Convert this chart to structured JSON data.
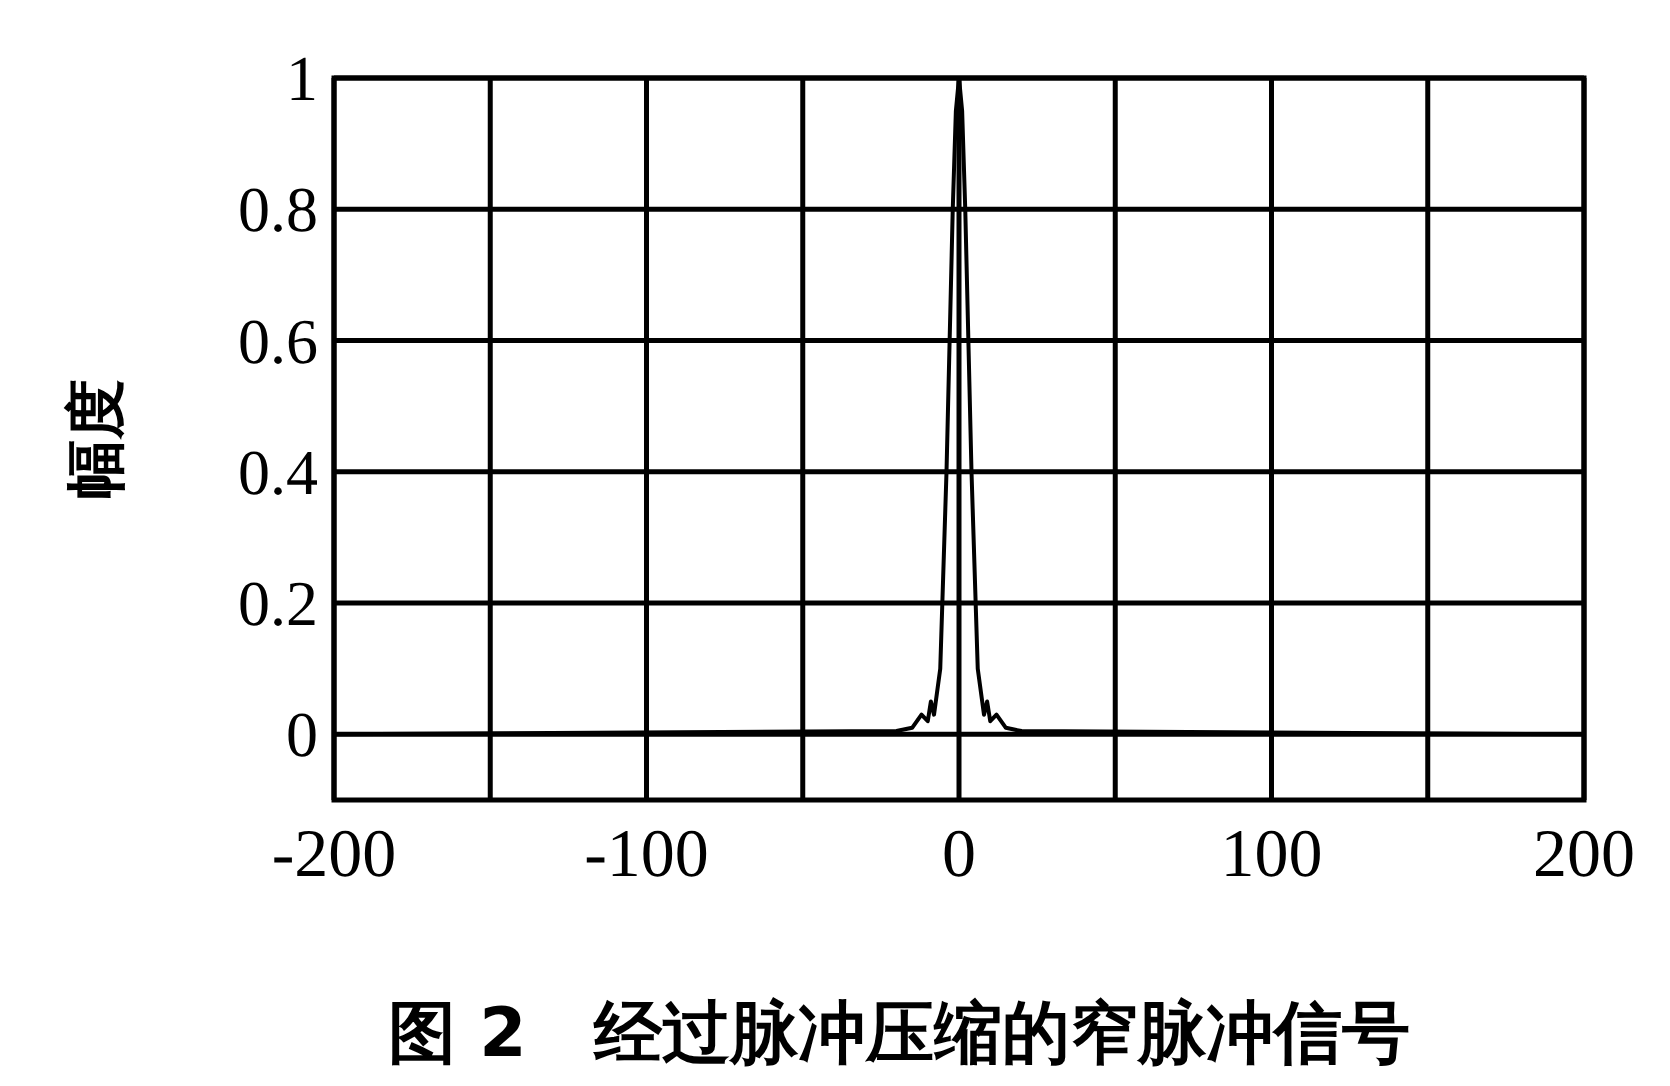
{
  "chart_data": {
    "type": "line",
    "title": "图 2　经过脉冲压缩的窄脉冲信号",
    "ylabel": "幅度",
    "x": [
      -200,
      -20,
      -15,
      -12,
      -10,
      -9,
      -8,
      -6,
      -4,
      -2,
      -1,
      0,
      1,
      2,
      4,
      6,
      8,
      9,
      10,
      12,
      15,
      20,
      200
    ],
    "series": [
      {
        "color": "#000000",
        "values": [
          0,
          0.005,
          0.01,
          0.03,
          0.02,
          0.05,
          0.03,
          0.1,
          0.4,
          0.8,
          0.95,
          1,
          0.95,
          0.8,
          0.4,
          0.1,
          0.03,
          0.05,
          0.02,
          0.03,
          0.01,
          0.005,
          0
        ]
      }
    ],
    "xlim": [
      -200,
      200
    ],
    "ylim": [
      -0.1,
      1
    ],
    "xticks": [
      -200,
      {
        "value": -150,
        "label": null
      },
      -100,
      {
        "value": -50,
        "label": null
      },
      0,
      {
        "value": 50,
        "label": null
      },
      100,
      {
        "value": 150,
        "label": null
      },
      200
    ],
    "yticks": [
      0,
      0.2,
      0.4,
      0.6,
      0.8,
      1
    ],
    "grid": true,
    "line_style": "solid",
    "marker": "none"
  }
}
